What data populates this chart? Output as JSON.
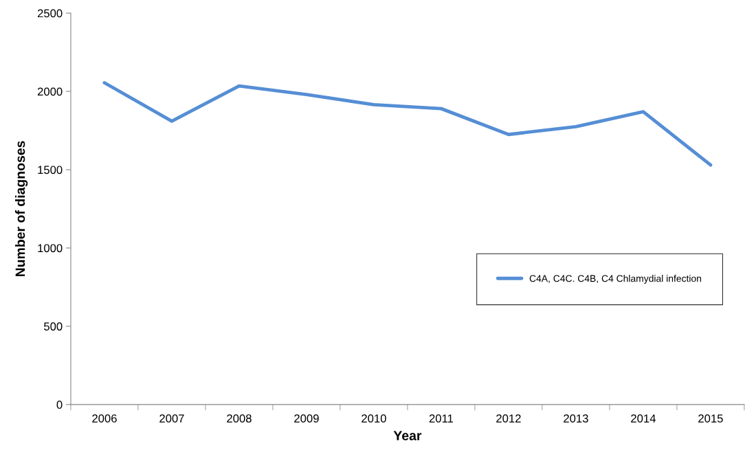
{
  "chart_data": {
    "type": "line",
    "xlabel": "Year",
    "ylabel": "Number of diagnoses",
    "categories": [
      "2006",
      "2007",
      "2008",
      "2009",
      "2010",
      "2011",
      "2012",
      "2013",
      "2014",
      "2015"
    ],
    "series": [
      {
        "name": "C4A, C4C. C4B, C4 Chlamydial infection",
        "color": "#558ed5",
        "values": [
          2055,
          1810,
          2035,
          1980,
          1915,
          1890,
          1725,
          1775,
          1870,
          1530
        ]
      }
    ],
    "ylim": [
      0,
      2500
    ],
    "yticks": [
      0,
      500,
      1000,
      1500,
      2000,
      2500
    ],
    "grid": false,
    "legend": "right",
    "marker": "none",
    "line_style": "solid"
  }
}
